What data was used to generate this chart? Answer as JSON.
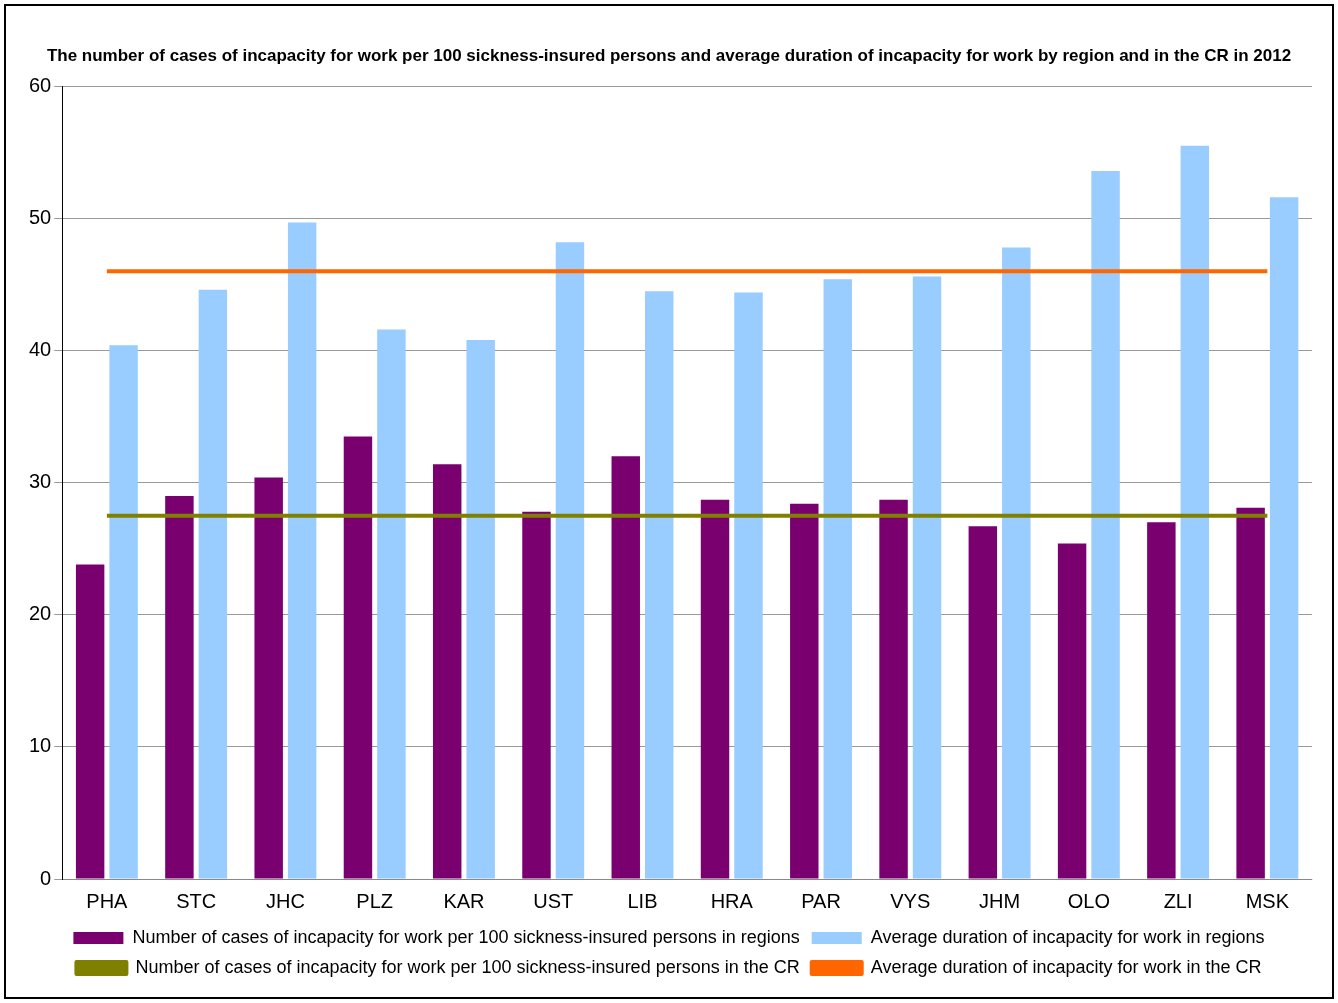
{
  "chart_data": {
    "type": "bar",
    "title": "The number of cases of incapacity for work per 100 sickness-insured persons and average duration of incapacity for work by region and in the CR in 2012",
    "categories": [
      "PHA",
      "STC",
      "JHC",
      "PLZ",
      "KAR",
      "UST",
      "LIB",
      "HRA",
      "PAR",
      "VYS",
      "JHM",
      "OLO",
      "ZLI",
      "MSK"
    ],
    "series": [
      {
        "name": "Number of cases of incapacity for work per 100 sickness-insured persons in regions",
        "color": "#7a0070",
        "values": [
          23.8,
          29.0,
          30.4,
          33.5,
          31.4,
          27.8,
          32.0,
          28.7,
          28.4,
          28.7,
          26.7,
          25.4,
          27.0,
          28.1
        ]
      },
      {
        "name": "Average duration of incapacity for work in regions",
        "color": "#99ccff",
        "values": [
          40.4,
          44.6,
          49.7,
          41.6,
          40.8,
          48.2,
          44.5,
          44.4,
          45.4,
          45.6,
          47.8,
          53.6,
          55.5,
          51.6
        ]
      },
      {
        "name": "Number of cases of incapacity for work per 100 sickness-insured persons in the CR",
        "type": "line",
        "color": "#808000",
        "values": [
          27.5,
          27.5,
          27.5,
          27.5,
          27.5,
          27.5,
          27.5,
          27.5,
          27.5,
          27.5,
          27.5,
          27.5,
          27.5,
          27.5
        ]
      },
      {
        "name": "Average duration of incapacity for work in the CR",
        "type": "line",
        "color": "#ff6600",
        "values": [
          46.0,
          46.0,
          46.0,
          46.0,
          46.0,
          46.0,
          46.0,
          46.0,
          46.0,
          46.0,
          46.0,
          46.0,
          46.0,
          46.0
        ]
      }
    ],
    "ylim": [
      0,
      60
    ],
    "yticks": [
      0,
      10,
      20,
      30,
      40,
      50,
      60
    ],
    "grid": "y",
    "legend": "bottom",
    "marker": "none"
  }
}
